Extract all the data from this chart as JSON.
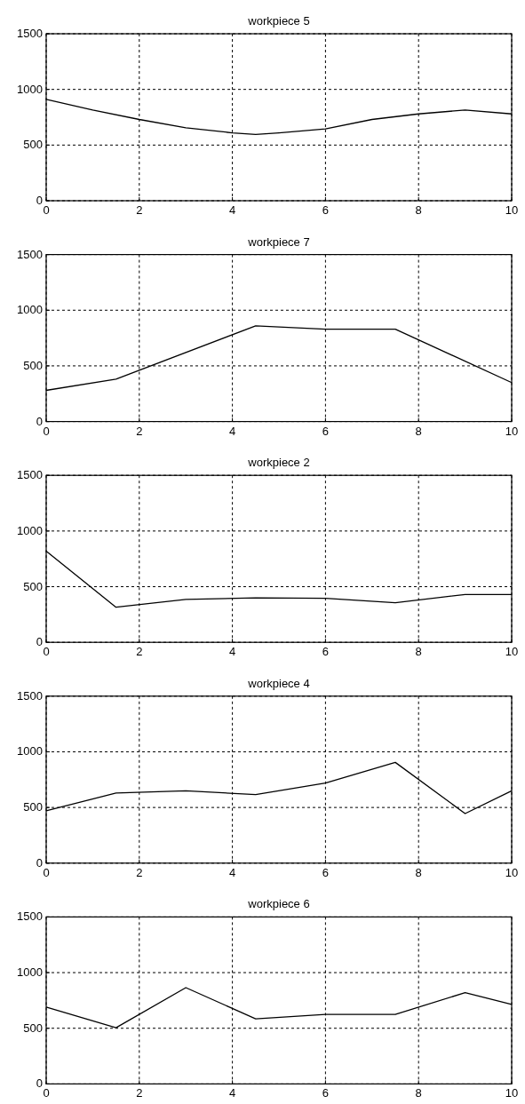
{
  "chart_data": [
    {
      "type": "line",
      "title": "workpiece 5",
      "x": [
        0,
        1,
        2,
        3,
        4,
        4.5,
        5,
        6,
        7,
        8,
        9,
        10
      ],
      "series": [
        {
          "color": "#000000",
          "values": [
            910,
            815,
            730,
            655,
            610,
            595,
            610,
            645,
            730,
            780,
            815,
            780
          ]
        }
      ],
      "xlim": [
        0,
        10
      ],
      "ylim": [
        0,
        1500
      ],
      "xticks": [
        0,
        2,
        4,
        6,
        8,
        10
      ],
      "yticks": [
        0,
        500,
        1000,
        1500
      ],
      "grid": true
    },
    {
      "type": "line",
      "title": "workpiece 7",
      "x": [
        0,
        1.5,
        4.5,
        6,
        7.5,
        10
      ],
      "series": [
        {
          "color": "#000000",
          "values": [
            280,
            380,
            860,
            830,
            830,
            350
          ]
        }
      ],
      "xlim": [
        0,
        10
      ],
      "ylim": [
        0,
        1500
      ],
      "xticks": [
        0,
        2,
        4,
        6,
        8,
        10
      ],
      "yticks": [
        0,
        500,
        1000,
        1500
      ],
      "grid": true
    },
    {
      "type": "line",
      "title": "workpiece 2",
      "x": [
        0,
        1.5,
        3,
        4.5,
        6,
        7.5,
        9,
        10
      ],
      "series": [
        {
          "color": "#000000",
          "values": [
            820,
            315,
            385,
            400,
            395,
            355,
            430,
            430
          ]
        }
      ],
      "xlim": [
        0,
        10
      ],
      "ylim": [
        0,
        1500
      ],
      "xticks": [
        0,
        2,
        4,
        6,
        8,
        10
      ],
      "yticks": [
        0,
        500,
        1000,
        1500
      ],
      "grid": true
    },
    {
      "type": "line",
      "title": "workpiece 4",
      "x": [
        0,
        1.5,
        3,
        4.5,
        6,
        7.5,
        9,
        10
      ],
      "series": [
        {
          "color": "#000000",
          "values": [
            470,
            630,
            650,
            615,
            720,
            905,
            445,
            650
          ]
        }
      ],
      "xlim": [
        0,
        10
      ],
      "ylim": [
        0,
        1500
      ],
      "xticks": [
        0,
        2,
        4,
        6,
        8,
        10
      ],
      "yticks": [
        0,
        500,
        1000,
        1500
      ],
      "grid": true
    },
    {
      "type": "line",
      "title": "workpiece 6",
      "x": [
        0,
        1.5,
        3,
        4.5,
        6,
        7.5,
        9,
        10
      ],
      "series": [
        {
          "color": "#000000",
          "values": [
            690,
            505,
            865,
            585,
            625,
            625,
            820,
            715
          ]
        }
      ],
      "xlim": [
        0,
        10
      ],
      "ylim": [
        0,
        1500
      ],
      "xticks": [
        0,
        2,
        4,
        6,
        8,
        10
      ],
      "yticks": [
        0,
        500,
        1000,
        1500
      ],
      "grid": true
    }
  ]
}
